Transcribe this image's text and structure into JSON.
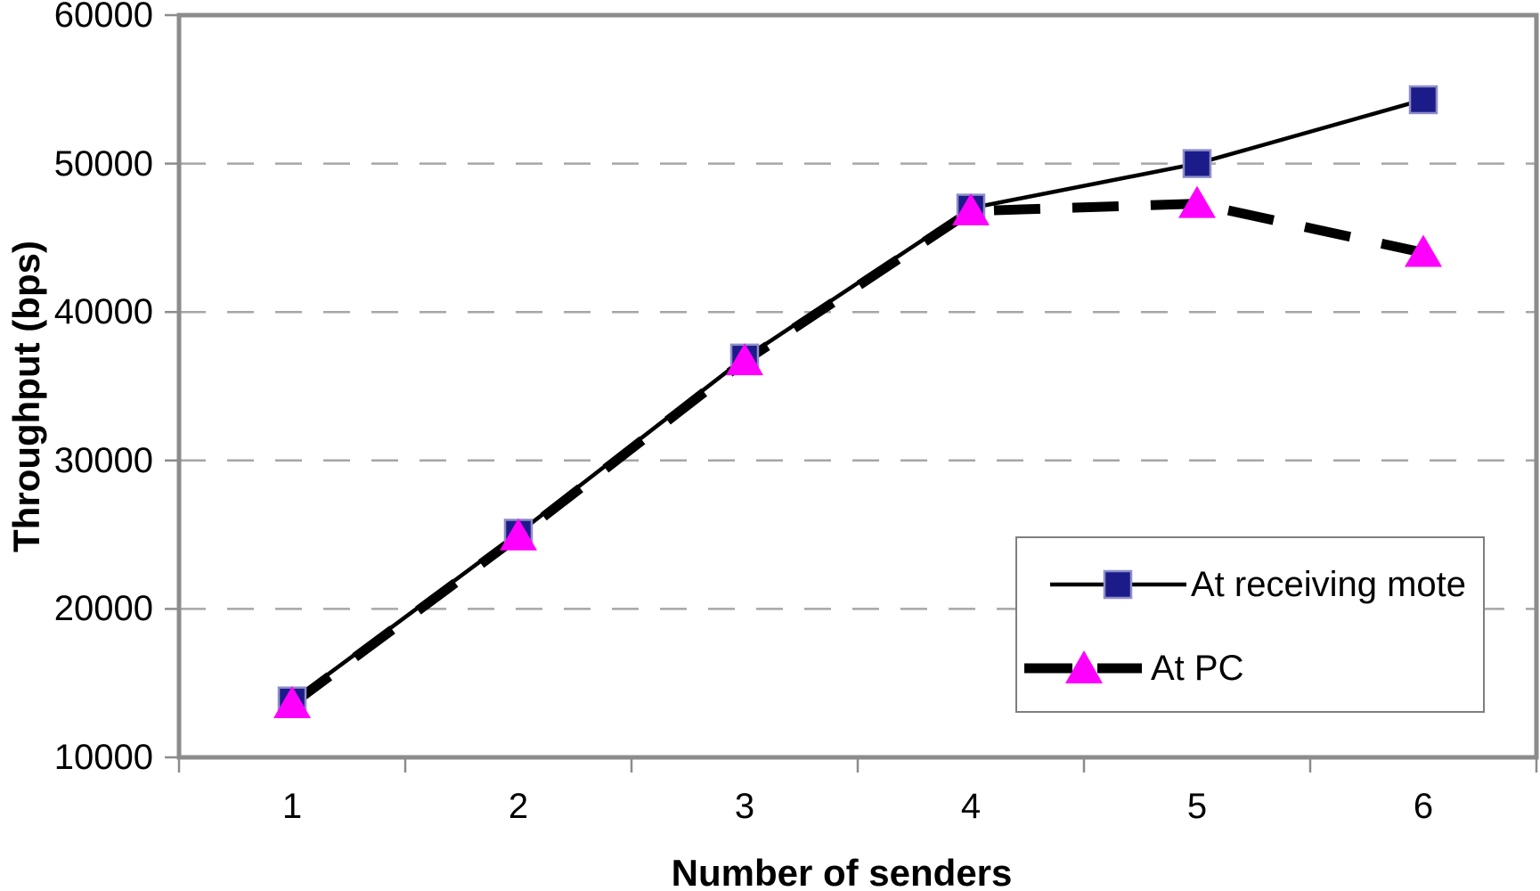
{
  "chart_data": {
    "type": "line",
    "title": "",
    "xlabel": "Number of senders",
    "ylabel": "Throughput (bps)",
    "x": [
      1,
      2,
      3,
      4,
      5,
      6
    ],
    "yticks": [
      10000,
      20000,
      30000,
      40000,
      50000,
      60000
    ],
    "ylim": [
      10000,
      60000
    ],
    "grid": "horizontal dashed gridlines at 20000-50000",
    "legend_position": "inside bottom-right box",
    "series": [
      {
        "name": "At receiving mote",
        "values": [
          13800,
          25100,
          36900,
          47000,
          50000,
          54300
        ],
        "line_style": "solid thin black",
        "marker": "square",
        "marker_color": "#1B1B8A"
      },
      {
        "name": "At PC",
        "values": [
          13600,
          24900,
          36700,
          46800,
          47300,
          44000
        ],
        "line_style": "dashed thick black",
        "marker": "triangle",
        "marker_color": "#FF00FF"
      }
    ]
  },
  "colors": {
    "background": "#FFFFFF",
    "line": "#000000",
    "marker1_fill": "#1B1B8A",
    "marker1_border": "#8E8EC8",
    "marker2_fill": "#FF00FF",
    "gridline": "#A6A6A6",
    "axis": "#8C8C8C",
    "legend_border": "#7F7F7F",
    "text": "#000000"
  }
}
